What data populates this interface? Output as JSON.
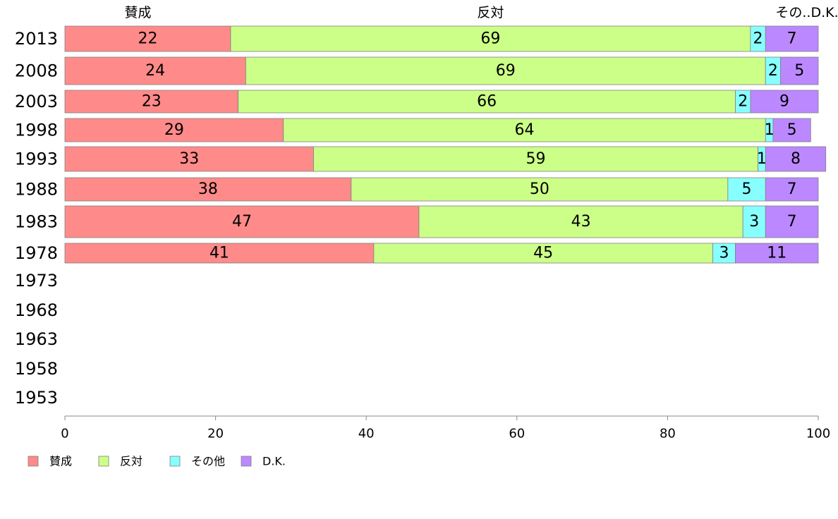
{
  "chart_data": {
    "type": "bar",
    "orientation": "horizontal",
    "stacked": true,
    "categories": [
      "2013",
      "2008",
      "2003",
      "1998",
      "1993",
      "1988",
      "1983",
      "1978",
      "1973",
      "1968",
      "1963",
      "1958",
      "1953"
    ],
    "series": [
      {
        "name": "賛成",
        "color": "#ff8a8a",
        "values": [
          22,
          24,
          23,
          29,
          33,
          38,
          47,
          41,
          null,
          null,
          null,
          null,
          null
        ]
      },
      {
        "name": "反対",
        "color": "#ccff88",
        "values": [
          69,
          69,
          66,
          64,
          59,
          50,
          43,
          45,
          null,
          null,
          null,
          null,
          null
        ]
      },
      {
        "name": "その他",
        "color": "#88ffff",
        "values": [
          2,
          2,
          2,
          1,
          1,
          5,
          3,
          3,
          null,
          null,
          null,
          null,
          null
        ]
      },
      {
        "name": "D.K.",
        "color": "#bb88ff",
        "values": [
          7,
          5,
          9,
          5,
          8,
          7,
          7,
          11,
          null,
          null,
          null,
          null,
          null
        ]
      }
    ],
    "top_labels": [
      "賛成",
      "反対",
      "その..D.K."
    ],
    "xlim": [
      0,
      100
    ],
    "xticks": [
      0,
      20,
      40,
      60,
      80,
      100
    ],
    "grid": false,
    "legend_position": "bottom-left"
  }
}
